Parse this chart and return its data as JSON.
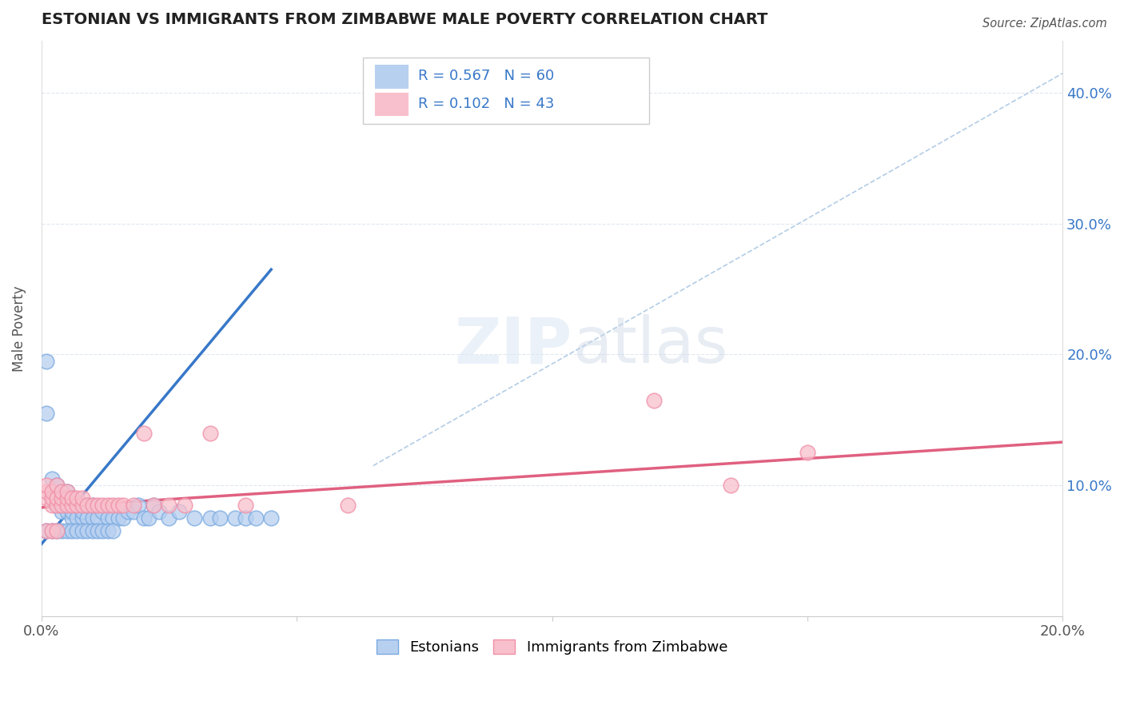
{
  "title": "ESTONIAN VS IMMIGRANTS FROM ZIMBABWE MALE POVERTY CORRELATION CHART",
  "source": "Source: ZipAtlas.com",
  "ylabel_label": "Male Poverty",
  "legend_r1": "R = 0.567",
  "legend_n1": "N = 60",
  "legend_r2": "R = 0.102",
  "legend_n2": "N = 43",
  "legend_label1": "Estonians",
  "legend_label2": "Immigrants from Zimbabwe",
  "color_blue_fill": "#b8d0f0",
  "color_pink_fill": "#f8c0cc",
  "color_blue_edge": "#7aaae0",
  "color_pink_edge": "#f090a8",
  "color_blue_line": "#3878c8",
  "color_pink_line": "#e06080",
  "color_dashed": "#a0c0e0",
  "color_title": "#222222",
  "color_legend_text": "#3878c8",
  "color_grid": "#e0e8f0",
  "xlim": [
    0.0,
    0.2
  ],
  "ylim": [
    0.0,
    0.44
  ],
  "y_tick_positions": [
    0.1,
    0.2,
    0.3,
    0.4
  ],
  "y_tick_labels": [
    "10.0%",
    "20.0%",
    "30.0%",
    "40.0%"
  ],
  "x_tick_positions": [
    0.0,
    0.05,
    0.1,
    0.15,
    0.2
  ],
  "x_tick_labels": [
    "0.0%",
    "",
    "",
    "",
    "20.0%"
  ],
  "blue_scatter_x": [
    0.001,
    0.001,
    0.002,
    0.002,
    0.003,
    0.003,
    0.003,
    0.004,
    0.004,
    0.004,
    0.005,
    0.005,
    0.005,
    0.006,
    0.006,
    0.006,
    0.007,
    0.007,
    0.008,
    0.008,
    0.009,
    0.009,
    0.01,
    0.01,
    0.011,
    0.012,
    0.013,
    0.014,
    0.015,
    0.016,
    0.017,
    0.018,
    0.019,
    0.02,
    0.021,
    0.022,
    0.023,
    0.025,
    0.027,
    0.03,
    0.001,
    0.002,
    0.003,
    0.004,
    0.005,
    0.006,
    0.007,
    0.008,
    0.009,
    0.01,
    0.011,
    0.012,
    0.013,
    0.014,
    0.033,
    0.035,
    0.038,
    0.04,
    0.042,
    0.045
  ],
  "blue_scatter_y": [
    0.195,
    0.155,
    0.09,
    0.105,
    0.085,
    0.09,
    0.1,
    0.08,
    0.085,
    0.095,
    0.08,
    0.085,
    0.095,
    0.075,
    0.08,
    0.09,
    0.075,
    0.085,
    0.075,
    0.08,
    0.075,
    0.085,
    0.075,
    0.085,
    0.075,
    0.08,
    0.075,
    0.075,
    0.075,
    0.075,
    0.08,
    0.08,
    0.085,
    0.075,
    0.075,
    0.085,
    0.08,
    0.075,
    0.08,
    0.075,
    0.065,
    0.065,
    0.065,
    0.065,
    0.065,
    0.065,
    0.065,
    0.065,
    0.065,
    0.065,
    0.065,
    0.065,
    0.065,
    0.065,
    0.075,
    0.075,
    0.075,
    0.075,
    0.075,
    0.075
  ],
  "pink_scatter_x": [
    0.001,
    0.001,
    0.001,
    0.002,
    0.002,
    0.002,
    0.003,
    0.003,
    0.003,
    0.004,
    0.004,
    0.004,
    0.005,
    0.005,
    0.005,
    0.006,
    0.006,
    0.007,
    0.007,
    0.008,
    0.008,
    0.009,
    0.01,
    0.011,
    0.012,
    0.013,
    0.014,
    0.015,
    0.016,
    0.018,
    0.02,
    0.022,
    0.025,
    0.028,
    0.033,
    0.04,
    0.06,
    0.12,
    0.135,
    0.15,
    0.001,
    0.002,
    0.003
  ],
  "pink_scatter_y": [
    0.09,
    0.095,
    0.1,
    0.085,
    0.09,
    0.095,
    0.085,
    0.09,
    0.1,
    0.085,
    0.09,
    0.095,
    0.085,
    0.09,
    0.095,
    0.085,
    0.09,
    0.085,
    0.09,
    0.085,
    0.09,
    0.085,
    0.085,
    0.085,
    0.085,
    0.085,
    0.085,
    0.085,
    0.085,
    0.085,
    0.14,
    0.085,
    0.085,
    0.085,
    0.14,
    0.085,
    0.085,
    0.165,
    0.1,
    0.125,
    0.065,
    0.065,
    0.065
  ],
  "blue_line_x": [
    0.0,
    0.045
  ],
  "blue_line_y": [
    0.055,
    0.265
  ],
  "pink_line_x": [
    0.0,
    0.2
  ],
  "pink_line_y": [
    0.083,
    0.133
  ],
  "diag_line_x": [
    0.065,
    0.2
  ],
  "diag_line_y": [
    0.115,
    0.415
  ]
}
